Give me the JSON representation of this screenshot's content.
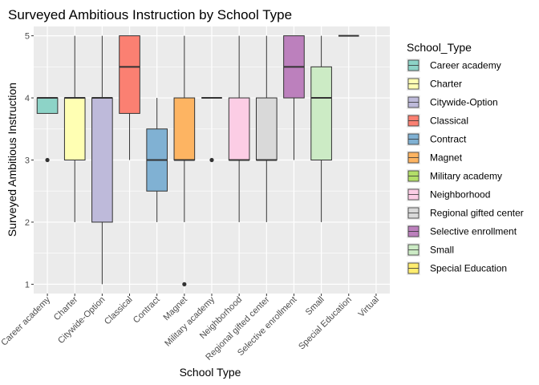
{
  "chart_data": {
    "type": "boxplot",
    "title": "Surveyed Ambitious Instruction by School Type",
    "xlabel": "School Type",
    "ylabel": "Surveyed Ambitious Instruction",
    "ylim": [
      0.85,
      5.15
    ],
    "y_ticks": [
      1,
      2,
      3,
      4,
      5
    ],
    "grid": true,
    "legend": {
      "title": "School_Type",
      "placement": "right"
    },
    "categories": [
      "Career academy",
      "Charter",
      "Citywide-Option",
      "Classical",
      "Contract",
      "Magnet",
      "Military academy",
      "Neighborhood",
      "Regional gifted center",
      "Selective enrollment",
      "Small",
      "Special Education",
      "Virtual"
    ],
    "boxes": [
      {
        "category": "Career academy",
        "color": "#8DD3C7",
        "min": 3.75,
        "q1": 3.75,
        "median": 4,
        "q3": 4,
        "max": 4,
        "outliers": [
          3
        ]
      },
      {
        "category": "Charter",
        "color": "#FFFFB3",
        "min": 2,
        "q1": 3,
        "median": 4,
        "q3": 4,
        "max": 5,
        "outliers": []
      },
      {
        "category": "Citywide-Option",
        "color": "#BEBADA",
        "min": 1,
        "q1": 2,
        "median": 4,
        "q3": 4,
        "max": 5,
        "outliers": []
      },
      {
        "category": "Classical",
        "color": "#FB8072",
        "min": 3,
        "q1": 3.75,
        "median": 4.5,
        "q3": 5,
        "max": 5,
        "outliers": []
      },
      {
        "category": "Contract",
        "color": "#80B1D3",
        "min": 2,
        "q1": 2.5,
        "median": 3,
        "q3": 3.5,
        "max": 4,
        "outliers": []
      },
      {
        "category": "Magnet",
        "color": "#FDB462",
        "min": 2,
        "q1": 3,
        "median": 3,
        "q3": 4,
        "max": 5,
        "outliers": [
          1
        ]
      },
      {
        "category": "Military academy",
        "color": "#B3DE69",
        "min": 4,
        "q1": 4,
        "median": 4,
        "q3": 4,
        "max": 4,
        "outliers": [
          3
        ]
      },
      {
        "category": "Neighborhood",
        "color": "#FCCDE5",
        "min": 2,
        "q1": 3,
        "median": 3,
        "q3": 4,
        "max": 5,
        "outliers": []
      },
      {
        "category": "Regional gifted center",
        "color": "#D9D9D9",
        "min": 2,
        "q1": 3,
        "median": 3,
        "q3": 4,
        "max": 5,
        "outliers": []
      },
      {
        "category": "Selective enrollment",
        "color": "#BC80BD",
        "min": 3,
        "q1": 4,
        "median": 4.5,
        "q3": 5,
        "max": 5,
        "outliers": []
      },
      {
        "category": "Small",
        "color": "#CCEBC5",
        "min": 2,
        "q1": 3,
        "median": 4,
        "q3": 4.5,
        "max": 5,
        "outliers": []
      },
      {
        "category": "Special Education",
        "color": "#FFED6F",
        "min": 5,
        "q1": 5,
        "median": 5,
        "q3": 5,
        "max": 5,
        "outliers": []
      }
    ],
    "legend_items": [
      {
        "label": "Career academy",
        "color": "#8DD3C7"
      },
      {
        "label": "Charter",
        "color": "#FFFFB3"
      },
      {
        "label": "Citywide-Option",
        "color": "#BEBADA"
      },
      {
        "label": "Classical",
        "color": "#FB8072"
      },
      {
        "label": "Contract",
        "color": "#80B1D3"
      },
      {
        "label": "Magnet",
        "color": "#FDB462"
      },
      {
        "label": "Military academy",
        "color": "#B3DE69"
      },
      {
        "label": "Neighborhood",
        "color": "#FCCDE5"
      },
      {
        "label": "Regional gifted center",
        "color": "#D9D9D9"
      },
      {
        "label": "Selective enrollment",
        "color": "#BC80BD"
      },
      {
        "label": "Small",
        "color": "#CCEBC5"
      },
      {
        "label": "Special Education",
        "color": "#FFED6F"
      }
    ]
  }
}
